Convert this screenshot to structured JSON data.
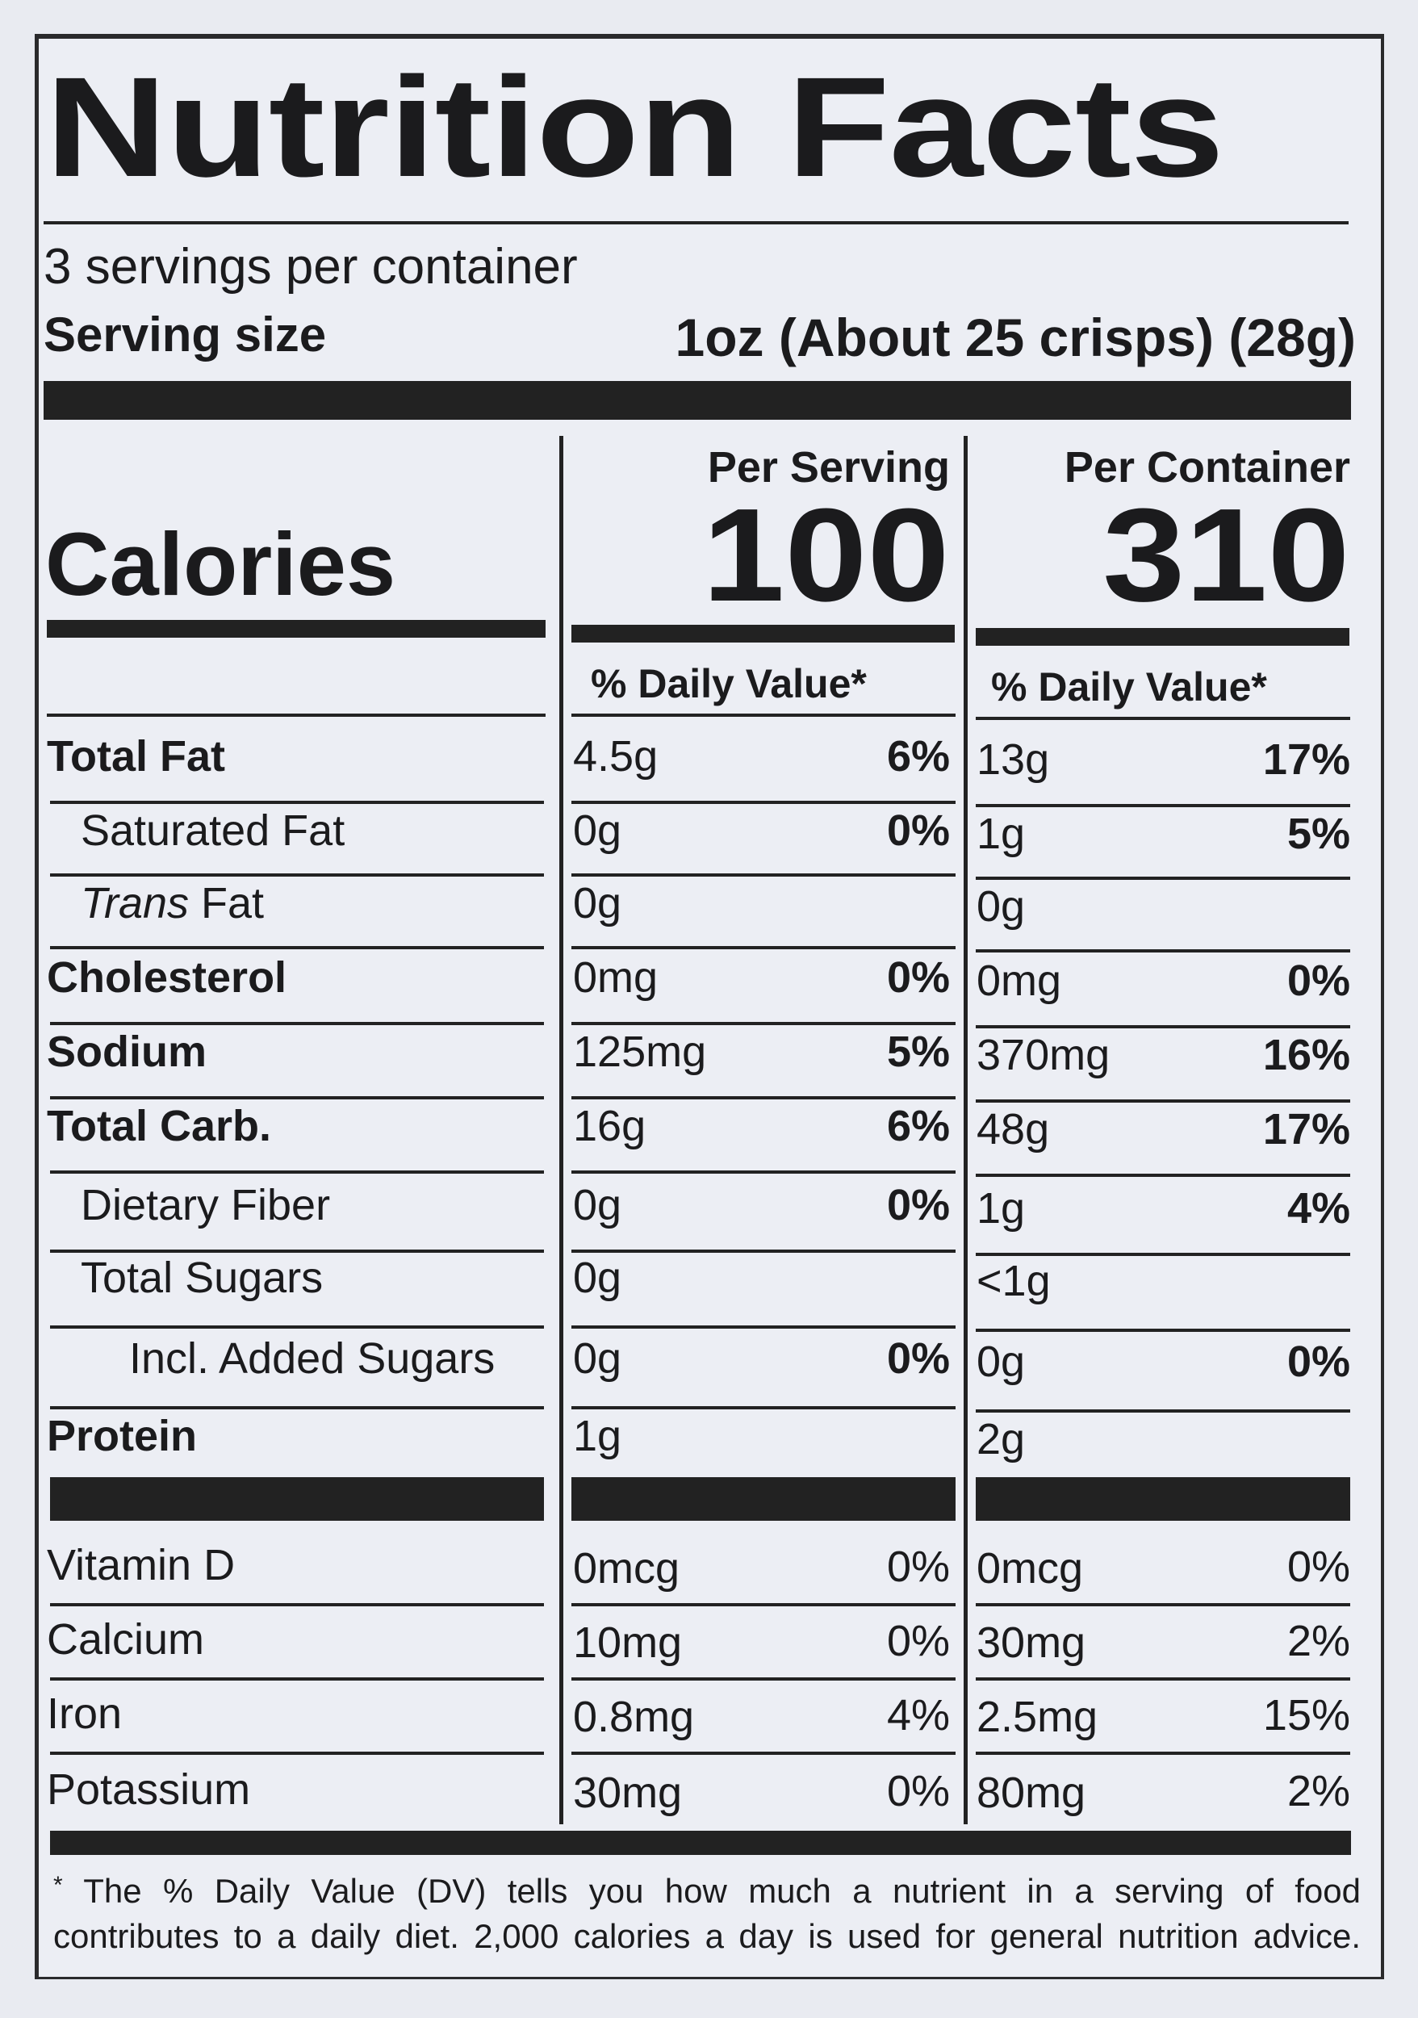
{
  "title": "Nutrition Facts",
  "servings_per_container": "3 servings per container",
  "serving_size_label": "Serving size",
  "serving_size_value": "1oz (About 25 crisps) (28g)",
  "calories_label": "Calories",
  "columns": [
    {
      "heading": "Per Serving",
      "calories": "100",
      "dv_heading": "% Daily Value*"
    },
    {
      "heading": "Per Container",
      "calories": "310",
      "dv_heading": "% Daily Value*"
    }
  ],
  "nutrients": [
    {
      "name": "Total Fat",
      "bold": true,
      "indent": 0,
      "serving": {
        "amount": "4.5g",
        "dv": "6%"
      },
      "container": {
        "amount": "13g",
        "dv": "17%"
      }
    },
    {
      "name": "Saturated Fat",
      "bold": false,
      "indent": 1,
      "serving": {
        "amount": "0g",
        "dv": "0%"
      },
      "container": {
        "amount": "1g",
        "dv": "5%"
      }
    },
    {
      "name": "Trans Fat",
      "name_italic": "Trans",
      "name_rest": " Fat",
      "bold": false,
      "indent": 1,
      "serving": {
        "amount": "0g",
        "dv": ""
      },
      "container": {
        "amount": "0g",
        "dv": ""
      }
    },
    {
      "name": "Cholesterol",
      "bold": true,
      "indent": 0,
      "serving": {
        "amount": "0mg",
        "dv": "0%"
      },
      "container": {
        "amount": "0mg",
        "dv": "0%"
      }
    },
    {
      "name": "Sodium",
      "bold": true,
      "indent": 0,
      "serving": {
        "amount": "125mg",
        "dv": "5%"
      },
      "container": {
        "amount": "370mg",
        "dv": "16%"
      }
    },
    {
      "name": "Total Carb.",
      "bold": true,
      "indent": 0,
      "serving": {
        "amount": "16g",
        "dv": "6%"
      },
      "container": {
        "amount": "48g",
        "dv": "17%"
      }
    },
    {
      "name": "Dietary Fiber",
      "bold": false,
      "indent": 1,
      "serving": {
        "amount": "0g",
        "dv": "0%"
      },
      "container": {
        "amount": "1g",
        "dv": "4%"
      }
    },
    {
      "name": "Total Sugars",
      "bold": false,
      "indent": 1,
      "serving": {
        "amount": "0g",
        "dv": ""
      },
      "container": {
        "amount": "<1g",
        "dv": ""
      }
    },
    {
      "name": "Incl. Added Sugars",
      "bold": false,
      "indent": 2,
      "serving": {
        "amount": "0g",
        "dv": "0%"
      },
      "container": {
        "amount": "0g",
        "dv": "0%"
      }
    },
    {
      "name": "Protein",
      "bold": true,
      "indent": 0,
      "serving": {
        "amount": "1g",
        "dv": ""
      },
      "container": {
        "amount": "2g",
        "dv": ""
      }
    }
  ],
  "vitamins": [
    {
      "name": "Vitamin D",
      "serving": {
        "amount": "0mcg",
        "dv": "0%"
      },
      "container": {
        "amount": "0mcg",
        "dv": "0%"
      }
    },
    {
      "name": "Calcium",
      "serving": {
        "amount": "10mg",
        "dv": "0%"
      },
      "container": {
        "amount": "30mg",
        "dv": "2%"
      }
    },
    {
      "name": "Iron",
      "serving": {
        "amount": "0.8mg",
        "dv": "4%"
      },
      "container": {
        "amount": "2.5mg",
        "dv": "15%"
      }
    },
    {
      "name": "Potassium",
      "serving": {
        "amount": "30mg",
        "dv": "0%"
      },
      "container": {
        "amount": "80mg",
        "dv": "2%"
      }
    }
  ],
  "footnote_lines": [
    "The % Daily Value (DV) tells you how much a nutrient in a serving of food",
    "contributes to a daily diet. 2,000 calories a day is used for general nutrition advice."
  ],
  "footnote_mark": "*"
}
